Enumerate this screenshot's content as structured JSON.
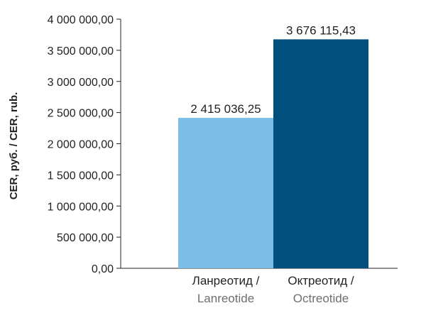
{
  "chart_data": {
    "type": "bar",
    "categories": [
      [
        "Ланреотид /",
        "Lanreotide"
      ],
      [
        "Октреотид /",
        "Octreotide"
      ]
    ],
    "values": [
      2415036.25,
      3676115.43
    ],
    "value_labels": [
      "2 415 036,25",
      "3 676 115,43"
    ],
    "bar_colors": [
      "#7cbde6",
      "#004f7c"
    ],
    "ylabel": "CER, руб. / CER, rub.",
    "xlabel": "",
    "ylim": [
      0,
      4000000
    ],
    "yticks": [
      0,
      500000,
      1000000,
      1500000,
      2000000,
      2500000,
      3000000,
      3500000,
      4000000
    ],
    "ytick_labels": [
      "0,00",
      "500 000,00",
      "1 000 000,00",
      "1 500 000,00",
      "2 000 000,00",
      "2 500 000,00",
      "3 000 000,00",
      "3 500 000,00",
      "4 000 000,00"
    ],
    "grid": false,
    "legend": "none"
  }
}
